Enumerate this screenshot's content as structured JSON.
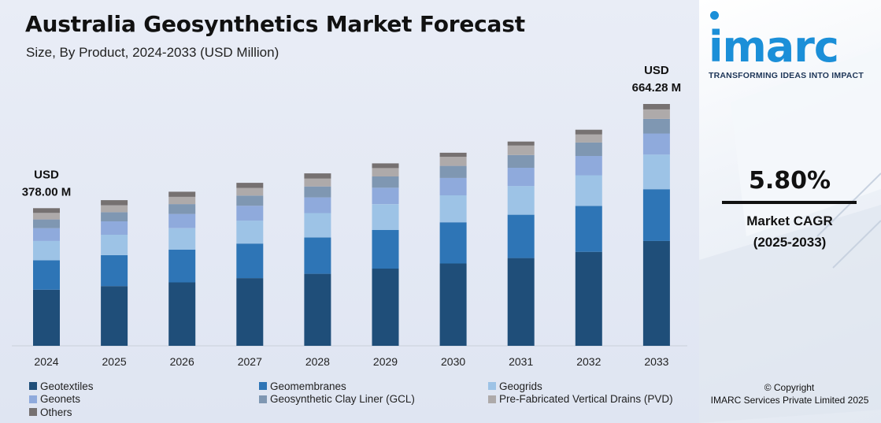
{
  "header": {
    "title": "Australia Geosynthetics Market Forecast",
    "subtitle": "Size, By Product, 2024-2033 (USD Million)"
  },
  "brand": {
    "logo_text": "imarc",
    "tagline": "TRANSFORMING IDEAS INTO IMPACT",
    "logo_color": "#1b8fd8"
  },
  "cagr": {
    "value": "5.80%",
    "label": "Market CAGR",
    "period": "(2025-2033)"
  },
  "footer": {
    "copyright": "© Copyright",
    "org": "IMARC Services Private Limited 2025"
  },
  "chart_data": {
    "type": "bar",
    "stacked": true,
    "title": "Australia Geosynthetics Market Forecast",
    "subtitle": "Size, By Product, 2024-2033 (USD Million)",
    "categories": [
      "2024",
      "2025",
      "2026",
      "2027",
      "2028",
      "2029",
      "2030",
      "2031",
      "2032",
      "2033"
    ],
    "totals": [
      378.0,
      400.0,
      423.2,
      447.7,
      473.7,
      501.2,
      530.3,
      561.0,
      593.5,
      664.28
    ],
    "annotations": [
      {
        "category": "2024",
        "line1": "USD",
        "line2": "378.00 M"
      },
      {
        "category": "2033",
        "line1": "USD",
        "line2": "664.28 M"
      }
    ],
    "series": [
      {
        "name": "Geotextiles",
        "color": "#1f4e79",
        "values": [
          154,
          164,
          174,
          186,
          198,
          212,
          226,
          241,
          258,
          288
        ]
      },
      {
        "name": "Geomembranes",
        "color": "#2e75b6",
        "values": [
          81,
          85,
          90,
          95,
          100,
          106,
          113,
          119,
          126,
          142
        ]
      },
      {
        "name": "Geogrids",
        "color": "#9dc3e6",
        "values": [
          53,
          56,
          59,
          63,
          67,
          71,
          74,
          79,
          84,
          95
        ]
      },
      {
        "name": "Geonets",
        "color": "#8faadc",
        "values": [
          35,
          37,
          39,
          41,
          43,
          45,
          48,
          50,
          53,
          58
        ]
      },
      {
        "name": "Geosynthetic Clay Liner (GCL)",
        "color": "#7f97b2",
        "values": [
          24,
          25,
          27,
          28,
          30,
          31,
          33,
          35,
          37,
          40
        ]
      },
      {
        "name": "Pre-Fabricated Vertical Drains (PVD)",
        "color": "#aeaaaa",
        "values": [
          18,
          19,
          20,
          21,
          22,
          23,
          25,
          26,
          22,
          26
        ]
      },
      {
        "name": "Others",
        "color": "#767171",
        "values": [
          13,
          14,
          14,
          14,
          14,
          13,
          11,
          11,
          13,
          15
        ]
      }
    ],
    "ylim": [
      0,
      700
    ],
    "grid": false,
    "legend_position": "bottom"
  }
}
